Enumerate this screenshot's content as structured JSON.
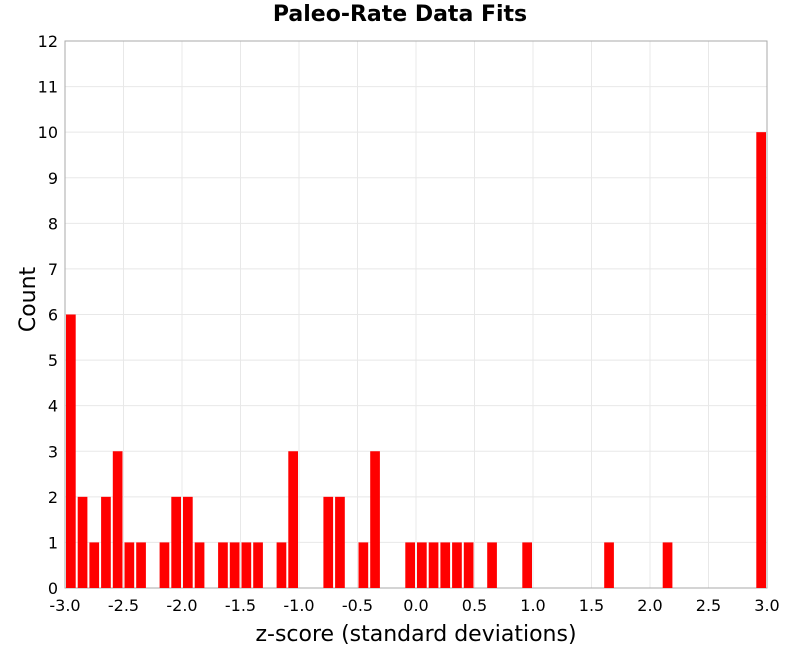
{
  "chart_data": {
    "type": "bar",
    "title": "Paleo-Rate Data Fits",
    "xlabel": "z-score (standard deviations)",
    "ylabel": "Count",
    "xlim": [
      -3.0,
      3.0
    ],
    "ylim": [
      0,
      12
    ],
    "x_ticks": [
      "-3.0",
      "-2.5",
      "-2.0",
      "-1.5",
      "-1.0",
      "-0.5",
      "0.0",
      "0.5",
      "1.0",
      "1.5",
      "2.0",
      "2.5",
      "3.0"
    ],
    "y_ticks": [
      "0",
      "1",
      "2",
      "3",
      "4",
      "5",
      "6",
      "7",
      "8",
      "9",
      "10",
      "11",
      "12"
    ],
    "bin_width": 0.1,
    "grid": true,
    "bar_color": "#ff0000",
    "bins": [
      {
        "x": -2.95,
        "count": 6
      },
      {
        "x": -2.85,
        "count": 2
      },
      {
        "x": -2.75,
        "count": 1
      },
      {
        "x": -2.65,
        "count": 2
      },
      {
        "x": -2.55,
        "count": 3
      },
      {
        "x": -2.45,
        "count": 1
      },
      {
        "x": -2.35,
        "count": 1
      },
      {
        "x": -2.15,
        "count": 1
      },
      {
        "x": -2.05,
        "count": 2
      },
      {
        "x": -1.95,
        "count": 2
      },
      {
        "x": -1.85,
        "count": 1
      },
      {
        "x": -1.65,
        "count": 1
      },
      {
        "x": -1.55,
        "count": 1
      },
      {
        "x": -1.45,
        "count": 1
      },
      {
        "x": -1.35,
        "count": 1
      },
      {
        "x": -1.15,
        "count": 1
      },
      {
        "x": -1.05,
        "count": 3
      },
      {
        "x": -0.75,
        "count": 2
      },
      {
        "x": -0.65,
        "count": 2
      },
      {
        "x": -0.45,
        "count": 1
      },
      {
        "x": -0.35,
        "count": 3
      },
      {
        "x": -0.05,
        "count": 1
      },
      {
        "x": 0.05,
        "count": 1
      },
      {
        "x": 0.15,
        "count": 1
      },
      {
        "x": 0.25,
        "count": 1
      },
      {
        "x": 0.35,
        "count": 1
      },
      {
        "x": 0.45,
        "count": 1
      },
      {
        "x": 0.65,
        "count": 1
      },
      {
        "x": 0.95,
        "count": 1
      },
      {
        "x": 1.65,
        "count": 1
      },
      {
        "x": 2.15,
        "count": 1
      },
      {
        "x": 2.95,
        "count": 10
      }
    ]
  }
}
